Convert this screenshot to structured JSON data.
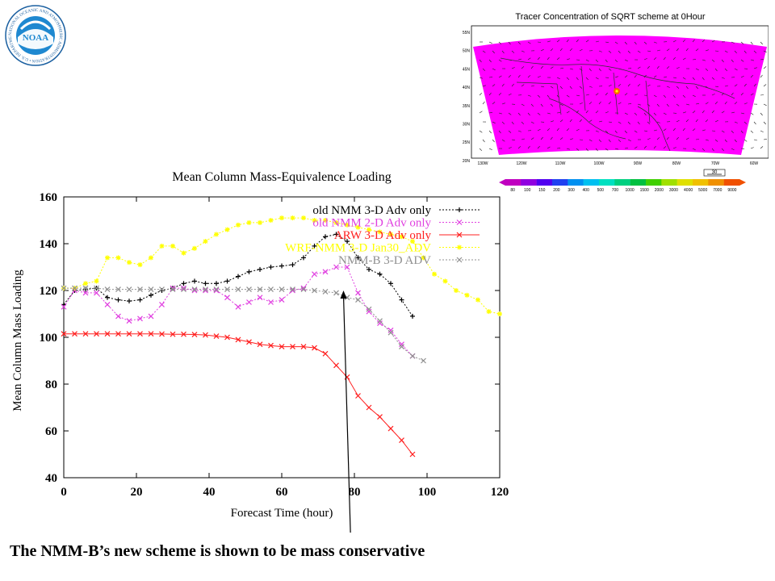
{
  "logo": {
    "emblem_text": "NOAA",
    "ring_text": "NATIONAL OCEANIC AND ATMOSPHERIC ADMINISTRATION • U.S. DEPARTMENT OF COMMERCE",
    "colors": {
      "ring": "#1a5fa0",
      "center": "#1e88d0",
      "emblem": "#ffffff"
    }
  },
  "map": {
    "title": "Tracer Concentration of SQRT scheme at 0Hour",
    "lat_labels": [
      "55N",
      "50N",
      "45N",
      "40N",
      "35N",
      "30N",
      "25N",
      "20N"
    ],
    "lon_labels": [
      "130W",
      "120W",
      "110W",
      "100W",
      "90W",
      "80W",
      "70W",
      "60W"
    ],
    "colorbar_labels": [
      "80",
      "100",
      "150",
      "200",
      "300",
      "400",
      "500",
      "700",
      "1000",
      "1500",
      "2000",
      "3000",
      "4000",
      "5000",
      "7000",
      "9000"
    ],
    "colorbar_colors": [
      "#c000c0",
      "#9000e0",
      "#5000f0",
      "#2040f0",
      "#0090f0",
      "#00c0f0",
      "#00e0c0",
      "#00d080",
      "#00c040",
      "#40d000",
      "#a0e000",
      "#e0e000",
      "#f0c000",
      "#f09000",
      "#f05000"
    ],
    "vector_scale_label": "30",
    "field_color": "#ff00ff",
    "vector_color": "#202020"
  },
  "chart_data": {
    "type": "line",
    "title": "Mean Column Mass-Equivalence Loading",
    "xlabel": "Forecast Time (hour)",
    "ylabel": "Mean Column Mass Loading",
    "xlim": [
      0,
      120
    ],
    "ylim": [
      40,
      160
    ],
    "xticks": [
      "0",
      "20",
      "40",
      "60",
      "80",
      "100",
      "120"
    ],
    "yticks": [
      "40",
      "60",
      "80",
      "100",
      "120",
      "140",
      "160"
    ],
    "grid": false,
    "legend_position": "top-right",
    "series": [
      {
        "name": "old NMM 3-D Adv only",
        "color": "#000000",
        "marker": "+",
        "x": [
          0,
          3,
          6,
          9,
          12,
          15,
          18,
          21,
          24,
          27,
          30,
          33,
          36,
          39,
          42,
          45,
          48,
          51,
          54,
          57,
          60,
          63,
          66,
          69,
          72,
          75,
          78,
          81,
          84,
          87,
          90,
          93,
          96
        ],
        "y": [
          114,
          120,
          120.5,
          121,
          117,
          116,
          115.5,
          116,
          118,
          120,
          121,
          123,
          124,
          123,
          123,
          124,
          126,
          128,
          129,
          130,
          130.5,
          131,
          134,
          139,
          143,
          144,
          141,
          134,
          129,
          127,
          123,
          116,
          109
        ]
      },
      {
        "name": "old NMM 2-D Adv only",
        "color": "#e040e0",
        "marker": "x",
        "x": [
          0,
          3,
          6,
          9,
          12,
          15,
          18,
          21,
          24,
          27,
          30,
          33,
          36,
          39,
          42,
          45,
          48,
          51,
          54,
          57,
          60,
          63,
          66,
          69,
          72,
          75,
          78,
          81,
          84,
          87,
          90,
          93,
          96
        ],
        "y": [
          113,
          120,
          119,
          119,
          114,
          109,
          107,
          108,
          109,
          114,
          121,
          121,
          120,
          120,
          120,
          117,
          113,
          115,
          117,
          115,
          116,
          120,
          121,
          127,
          128,
          130,
          130,
          119,
          111,
          106,
          103,
          97,
          92
        ]
      },
      {
        "name": "ARW 3-D Adv only",
        "color": "#ff2020",
        "marker": "x",
        "x": [
          0,
          3,
          6,
          9,
          12,
          15,
          18,
          21,
          24,
          27,
          30,
          33,
          36,
          39,
          42,
          45,
          48,
          51,
          54,
          57,
          60,
          63,
          66,
          69,
          72,
          75,
          78,
          81,
          84,
          87,
          90,
          93,
          96
        ],
        "y": [
          101.5,
          101.5,
          101.5,
          101.5,
          101.5,
          101.5,
          101.5,
          101.5,
          101.5,
          101.4,
          101.3,
          101.3,
          101.2,
          101,
          100.5,
          100,
          99,
          98,
          97,
          96.5,
          96,
          96,
          96,
          95.5,
          93,
          88,
          83,
          75,
          70,
          66,
          61,
          56,
          50
        ]
      },
      {
        "name": "WRF-NMM 3-D Jan30_ADV",
        "color": "#ffff00",
        "marker": "*",
        "x": [
          0,
          3,
          6,
          9,
          12,
          15,
          18,
          21,
          24,
          27,
          30,
          33,
          36,
          39,
          42,
          45,
          48,
          51,
          54,
          57,
          60,
          63,
          66,
          69,
          72,
          75,
          78,
          81,
          84,
          87,
          90,
          93,
          96,
          99,
          102,
          105,
          108,
          111,
          114,
          117,
          120
        ],
        "y": [
          121,
          121,
          123,
          124,
          134,
          134,
          132,
          131,
          134,
          139,
          139,
          136,
          138,
          141,
          144,
          146,
          148,
          149,
          149,
          150,
          151,
          151,
          151,
          150,
          150,
          149,
          148,
          147,
          146,
          145,
          144,
          143,
          141,
          134,
          127,
          124,
          120,
          118,
          116,
          111,
          110
        ]
      },
      {
        "name": "NMM-B 3-D ADV",
        "color": "#909090",
        "marker": "x",
        "x": [
          0,
          3,
          6,
          9,
          12,
          15,
          18,
          21,
          24,
          27,
          30,
          33,
          36,
          39,
          42,
          45,
          48,
          51,
          54,
          57,
          60,
          63,
          66,
          69,
          72,
          75,
          78,
          81,
          84,
          87,
          90,
          93,
          96,
          99
        ],
        "y": [
          121,
          121,
          121,
          121,
          120.5,
          120.5,
          120.5,
          120.5,
          120.5,
          120.5,
          120.5,
          120.5,
          120.5,
          120.5,
          120.5,
          120.5,
          120.5,
          120.5,
          120.5,
          120.5,
          120.5,
          120.5,
          120.5,
          120,
          119.5,
          119,
          117,
          116,
          112,
          107,
          102,
          96,
          92,
          90
        ]
      }
    ],
    "annotation_arrow": {
      "from": [
        79,
        12
      ],
      "to": [
        77,
        120
      ]
    }
  },
  "caption": "The NMM-B’s new scheme is shown to be mass conservative"
}
